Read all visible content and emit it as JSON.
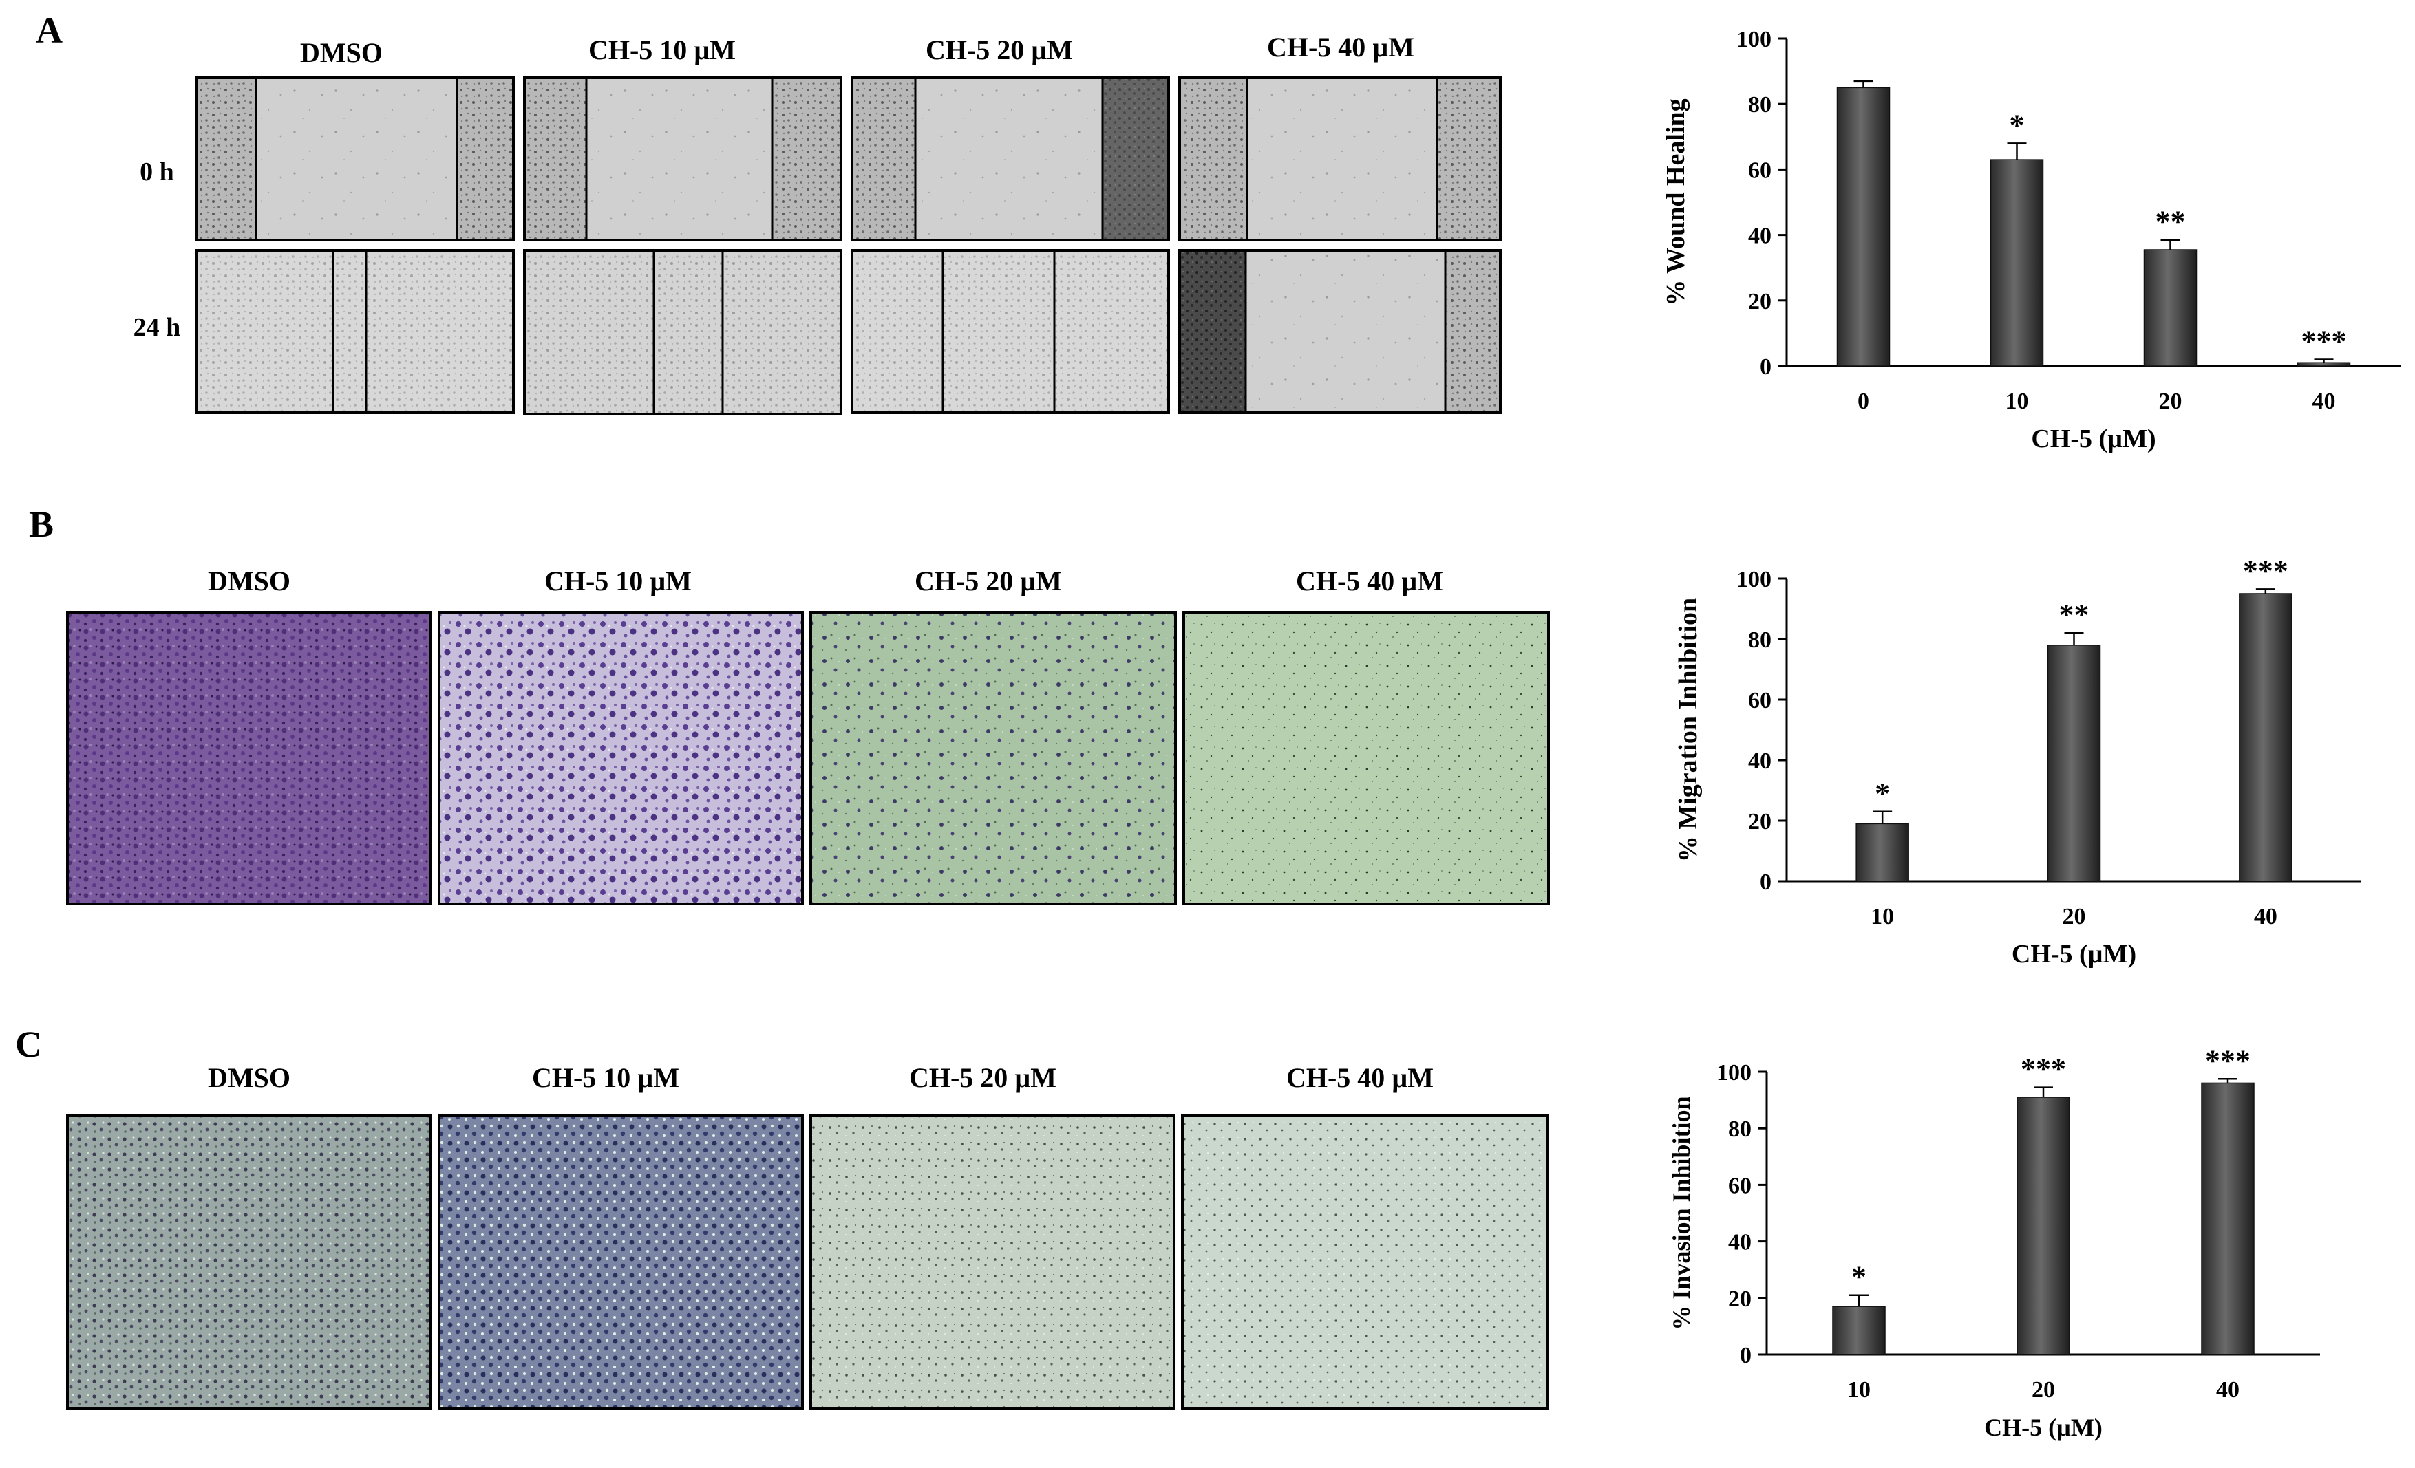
{
  "panels": {
    "A": {
      "letter": "A",
      "conditions": [
        "DMSO",
        "CH-5 10 µM",
        "CH-5 20 µM",
        "CH-5 40 µM"
      ],
      "rows": [
        "0 h",
        "24 h"
      ]
    },
    "B": {
      "letter": "B",
      "conditions": [
        "DMSO",
        "CH-5 10 µM",
        "CH-5 20 µM",
        "CH-5 40 µM"
      ]
    },
    "C": {
      "letter": "C",
      "conditions": [
        "DMSO",
        "CH-5 10 µM",
        "CH-5 20 µM",
        "CH-5 40 µM"
      ]
    }
  },
  "chart_data": [
    {
      "type": "bar",
      "panel": "A",
      "categories": [
        "0",
        "10",
        "20",
        "40"
      ],
      "values": [
        85,
        63,
        35.5,
        1
      ],
      "errors": [
        2,
        5,
        3,
        1
      ],
      "significance": [
        "",
        "*",
        "**",
        "***"
      ],
      "xlabel": "CH-5 (µM)",
      "ylabel": "% Wound Healing",
      "ylim": [
        0,
        100
      ],
      "yticks": [
        0,
        20,
        40,
        60,
        80,
        100
      ],
      "bar_color": "#3a3a3a"
    },
    {
      "type": "bar",
      "panel": "B",
      "categories": [
        "10",
        "20",
        "40"
      ],
      "values": [
        19,
        78,
        95
      ],
      "errors": [
        4,
        4,
        1.5
      ],
      "significance": [
        "*",
        "**",
        "***"
      ],
      "xlabel": "CH-5 (µM)",
      "ylabel": "% Migration Inhibition",
      "ylim": [
        0,
        100
      ],
      "yticks": [
        0,
        20,
        40,
        60,
        80,
        100
      ],
      "bar_color": "#3a3a3a"
    },
    {
      "type": "bar",
      "panel": "C",
      "categories": [
        "10",
        "20",
        "40"
      ],
      "values": [
        17,
        91,
        96
      ],
      "errors": [
        4,
        3.5,
        1.5
      ],
      "significance": [
        "*",
        "***",
        "***"
      ],
      "xlabel": "CH-5 (µM)",
      "ylabel": "% Invasion Inhibition",
      "ylim": [
        0,
        100
      ],
      "yticks": [
        0,
        20,
        40,
        60,
        80,
        100
      ],
      "bar_color": "#3a3a3a"
    }
  ]
}
